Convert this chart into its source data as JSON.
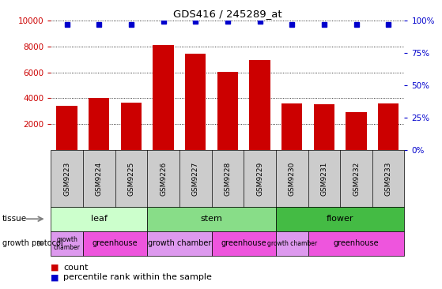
{
  "title": "GDS416 / 245289_at",
  "samples": [
    "GSM9223",
    "GSM9224",
    "GSM9225",
    "GSM9226",
    "GSM9227",
    "GSM9228",
    "GSM9229",
    "GSM9230",
    "GSM9231",
    "GSM9232",
    "GSM9233"
  ],
  "counts": [
    3400,
    4000,
    3650,
    8100,
    7400,
    6050,
    6950,
    3600,
    3550,
    2950,
    3600
  ],
  "percentiles": [
    97,
    97,
    97,
    99,
    99,
    99,
    99,
    97,
    97,
    97,
    97
  ],
  "bar_color": "#cc0000",
  "dot_color": "#0000cc",
  "ylim_left": [
    0,
    10000
  ],
  "yticks_left": [
    2000,
    4000,
    6000,
    8000,
    10000
  ],
  "yticks_right": [
    0,
    25,
    50,
    75,
    100
  ],
  "tissue_groups": [
    {
      "label": "leaf",
      "start": 0,
      "end": 3,
      "color": "#ccffcc"
    },
    {
      "label": "stem",
      "start": 3,
      "end": 7,
      "color": "#88dd88"
    },
    {
      "label": "flower",
      "start": 7,
      "end": 11,
      "color": "#44bb44"
    }
  ],
  "growth_protocol_groups": [
    {
      "label": "growth\nchamber",
      "start": 0,
      "end": 1,
      "color": "#dd99ee"
    },
    {
      "label": "greenhouse",
      "start": 1,
      "end": 3,
      "color": "#ee55dd"
    },
    {
      "label": "growth chamber",
      "start": 3,
      "end": 5,
      "color": "#dd99ee"
    },
    {
      "label": "greenhouse",
      "start": 5,
      "end": 7,
      "color": "#ee55dd"
    },
    {
      "label": "growth chamber",
      "start": 7,
      "end": 8,
      "color": "#dd99ee"
    },
    {
      "label": "greenhouse",
      "start": 8,
      "end": 11,
      "color": "#ee55dd"
    }
  ],
  "left_axis_color": "#cc0000",
  "right_axis_color": "#0000cc",
  "tissue_label": "tissue",
  "growth_protocol_label": "growth protocol",
  "legend_count_text": "count",
  "legend_percentile_text": "percentile rank within the sample",
  "sample_bg_color": "#cccccc",
  "grid_color": "black"
}
